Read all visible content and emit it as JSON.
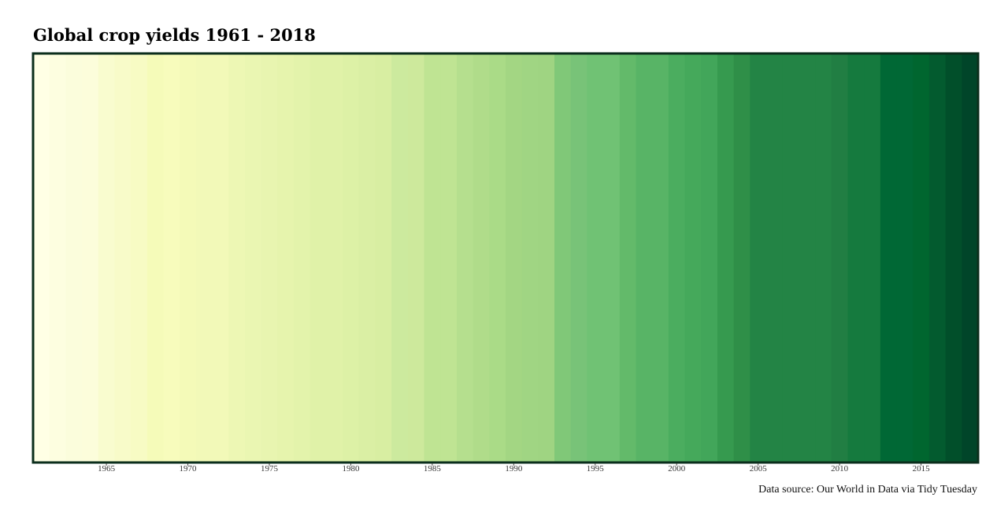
{
  "chart_data": {
    "type": "heatmap",
    "title": "Global crop yields 1961 - 2018",
    "caption": "Data source: Our World in Data via Tidy Tuesday",
    "xlabel": "",
    "ylabel": "",
    "xlim": [
      1961,
      2018
    ],
    "x_ticks": [
      1965,
      1970,
      1975,
      1980,
      1985,
      1990,
      1995,
      2000,
      2005,
      2010,
      2015
    ],
    "grid": false,
    "legend": "none",
    "palette": "YlGn",
    "border_color": "#0b2e1c",
    "years": [
      1961,
      1962,
      1963,
      1964,
      1965,
      1966,
      1967,
      1968,
      1969,
      1970,
      1971,
      1972,
      1973,
      1974,
      1975,
      1976,
      1977,
      1978,
      1979,
      1980,
      1981,
      1982,
      1983,
      1984,
      1985,
      1986,
      1987,
      1988,
      1989,
      1990,
      1991,
      1992,
      1993,
      1994,
      1995,
      1996,
      1997,
      1998,
      1999,
      2000,
      2001,
      2002,
      2003,
      2004,
      2005,
      2006,
      2007,
      2008,
      2009,
      2010,
      2011,
      2012,
      2013,
      2014,
      2015,
      2016,
      2017,
      2018
    ],
    "colors": [
      "#ffffe5",
      "#fdfee0",
      "#fbfddc",
      "#fcfddb",
      "#f9fccf",
      "#f8fbc9",
      "#f7fbc4",
      "#f5fbb9",
      "#f7fcbc",
      "#f4fab8",
      "#f2f9b8",
      "#f2f9b8",
      "#edf7b4",
      "#eaf6b2",
      "#e8f5b0",
      "#e6f4ad",
      "#e3f3ab",
      "#e0f2a8",
      "#e0f2a8",
      "#ddf1a6",
      "#daefa4",
      "#d8eea2",
      "#ccea9e",
      "#cde99c",
      "#bfe493",
      "#bfe493",
      "#b5df8e",
      "#b0dc8a",
      "#aadb87",
      "#a3d683",
      "#a0d583",
      "#9fd482",
      "#80c878",
      "#78c378",
      "#70c274",
      "#70c274",
      "#63ba6a",
      "#58b466",
      "#58b466",
      "#4bad5f",
      "#45a95b",
      "#42a65a",
      "#369a4f",
      "#2f8f48",
      "#238445",
      "#238445",
      "#238445",
      "#238445",
      "#238445",
      "#217e43",
      "#157a3e",
      "#157a3e",
      "#006835",
      "#006835",
      "#00662f",
      "#035b2f",
      "#014f2a",
      "#004529"
    ]
  }
}
